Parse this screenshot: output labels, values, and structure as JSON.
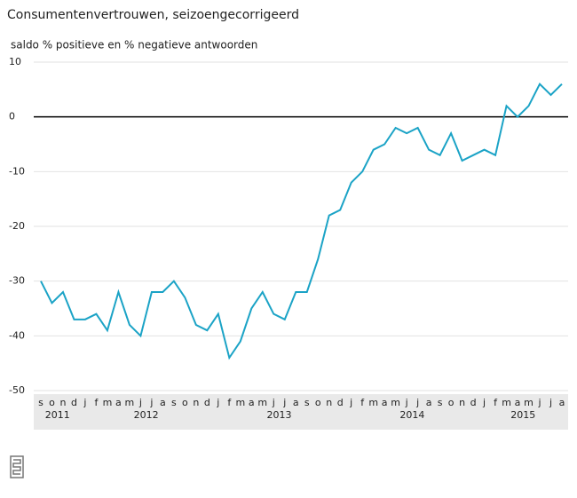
{
  "chart_data": {
    "type": "line",
    "title": "Consumentenvertrouwen, seizoengecorrigeerd",
    "subtitle": "saldo % positieve en % negatieve antwoorden",
    "categories": [
      "s",
      "o",
      "n",
      "d",
      "j",
      "f",
      "m",
      "a",
      "m",
      "j",
      "j",
      "a",
      "s",
      "o",
      "n",
      "d",
      "j",
      "f",
      "m",
      "a",
      "m",
      "j",
      "j",
      "a",
      "s",
      "o",
      "n",
      "d",
      "j",
      "f",
      "m",
      "a",
      "m",
      "j",
      "j",
      "a",
      "s",
      "o",
      "n",
      "d",
      "j",
      "f",
      "m",
      "a",
      "m",
      "j",
      "j",
      "a"
    ],
    "years": [
      "2011",
      "2012",
      "2013",
      "2014",
      "2015"
    ],
    "series": [
      {
        "name": "Consumentenvertrouwen",
        "color": "#1ba3c6",
        "values": [
          -30,
          -34,
          -32,
          -37,
          -37,
          -36,
          -39,
          -32,
          -38,
          -40,
          -32,
          -32,
          -30,
          -33,
          -38,
          -39,
          -36,
          -44,
          -41,
          -35,
          -32,
          -36,
          -37,
          -32,
          -32,
          -26,
          -18,
          -17,
          -12,
          -10,
          -6,
          -5,
          -2,
          -3,
          -2,
          -6,
          -7,
          -3,
          -8,
          -7,
          -6,
          -7,
          2,
          0,
          2,
          6,
          4,
          6
        ]
      }
    ],
    "ylim": [
      -50,
      10
    ],
    "yticks": [
      -50,
      -40,
      -30,
      -20,
      -10,
      0,
      10
    ],
    "grid": true
  }
}
